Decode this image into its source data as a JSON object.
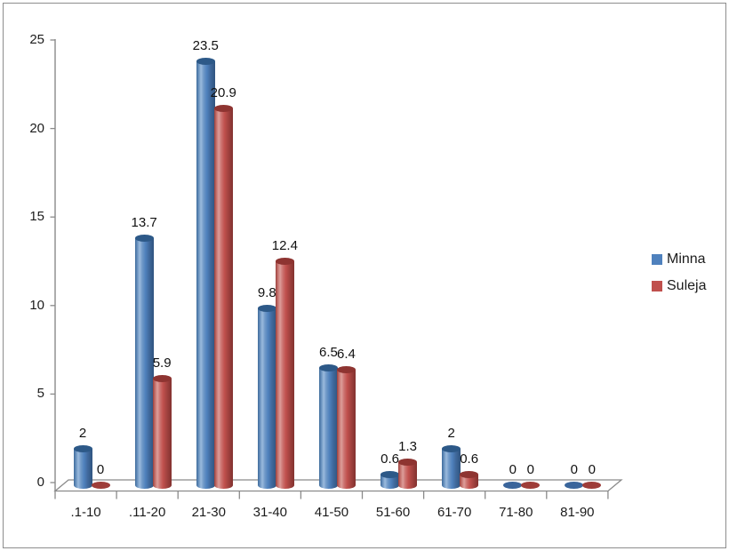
{
  "chart_data": {
    "type": "bar",
    "subtype": "3d-cylinder",
    "title": "",
    "categories": [
      ".1-10",
      ".11-20",
      "21-30",
      "31-40",
      "41-50",
      "51-60",
      "61-70",
      "71-80",
      "81-90"
    ],
    "series": [
      {
        "name": "Minna",
        "color": "#4F81BD",
        "values": [
          2,
          13.7,
          23.5,
          9.8,
          6.5,
          0.6,
          2,
          0,
          0
        ],
        "labels": [
          "2",
          "13.7",
          "23.5",
          "9.8",
          "6.5",
          "0.6",
          "2",
          "0",
          "0"
        ]
      },
      {
        "name": "Suleja",
        "color": "#C0504D",
        "values": [
          0,
          5.9,
          20.9,
          12.4,
          6.4,
          1.3,
          0.6,
          0,
          0
        ],
        "labels": [
          "0",
          "5.9",
          "20.9",
          "12.4",
          "6.4",
          "1.3",
          "0.6",
          "0",
          "0"
        ]
      }
    ],
    "xlabel": "",
    "ylabel": "",
    "ylim": [
      0,
      25
    ],
    "yticks": [
      0,
      5,
      10,
      15,
      20,
      25
    ],
    "ytick_labels": [
      "0",
      "5",
      "10",
      "15",
      "20",
      "25"
    ],
    "grid": "off",
    "legend_position": "right"
  }
}
